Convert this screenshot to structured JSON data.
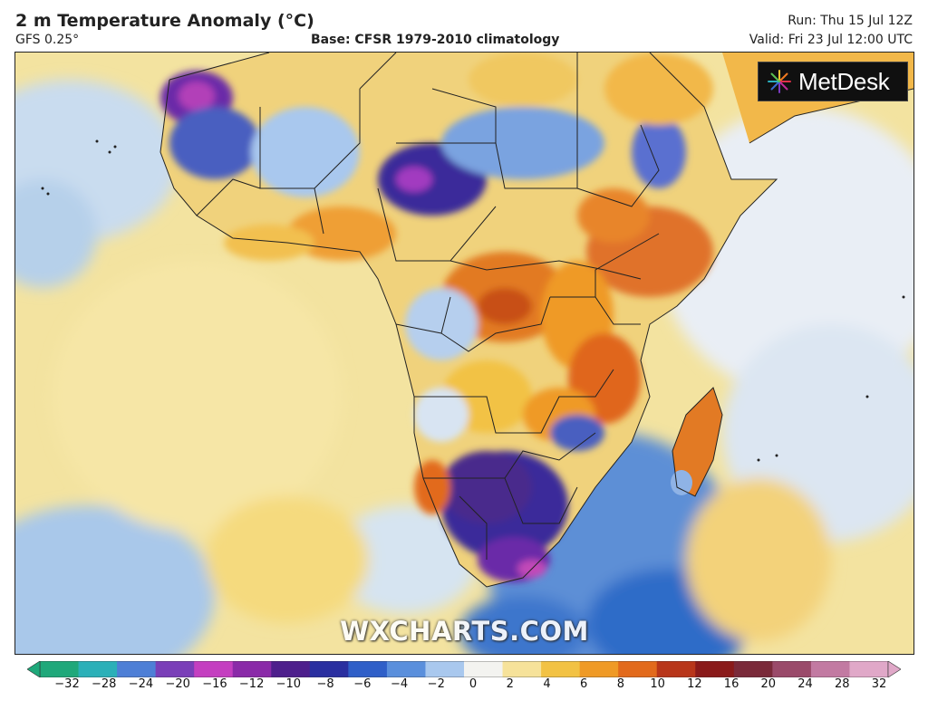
{
  "header": {
    "title": "2 m Temperature Anomaly (°C)",
    "model": "GFS 0.25°",
    "base": "Base: CFSR 1979-2010 climatology",
    "run": "Run: Thu 15 Jul 12Z",
    "valid": "Valid: Fri 23 Jul 12:00 UTC"
  },
  "logo": {
    "text": "MetDesk",
    "icon": "metdesk-starburst-icon"
  },
  "watermark": "WXCHARTS.COM",
  "colorbar": {
    "ticks": [
      "−32",
      "−28",
      "−24",
      "−20",
      "−16",
      "−12",
      "−10",
      "−8",
      "−6",
      "−4",
      "−2",
      "0",
      "2",
      "4",
      "6",
      "8",
      "10",
      "12",
      "16",
      "20",
      "24",
      "28",
      "32"
    ],
    "colors": [
      "#1fa87a",
      "#2bb0b8",
      "#4e7fd6",
      "#7a3fb8",
      "#c43fc0",
      "#8a2aa8",
      "#4e1f8c",
      "#2a2fa0",
      "#2f5fc8",
      "#5a8fdc",
      "#a9c8ee",
      "#f3f3f0",
      "#f6e29a",
      "#f2c244",
      "#ef9a26",
      "#e26a1c",
      "#b8361a",
      "#8a1a1a",
      "#7a2a3a",
      "#9a4a6a",
      "#c27aa2",
      "#e0a8c8"
    ]
  }
}
